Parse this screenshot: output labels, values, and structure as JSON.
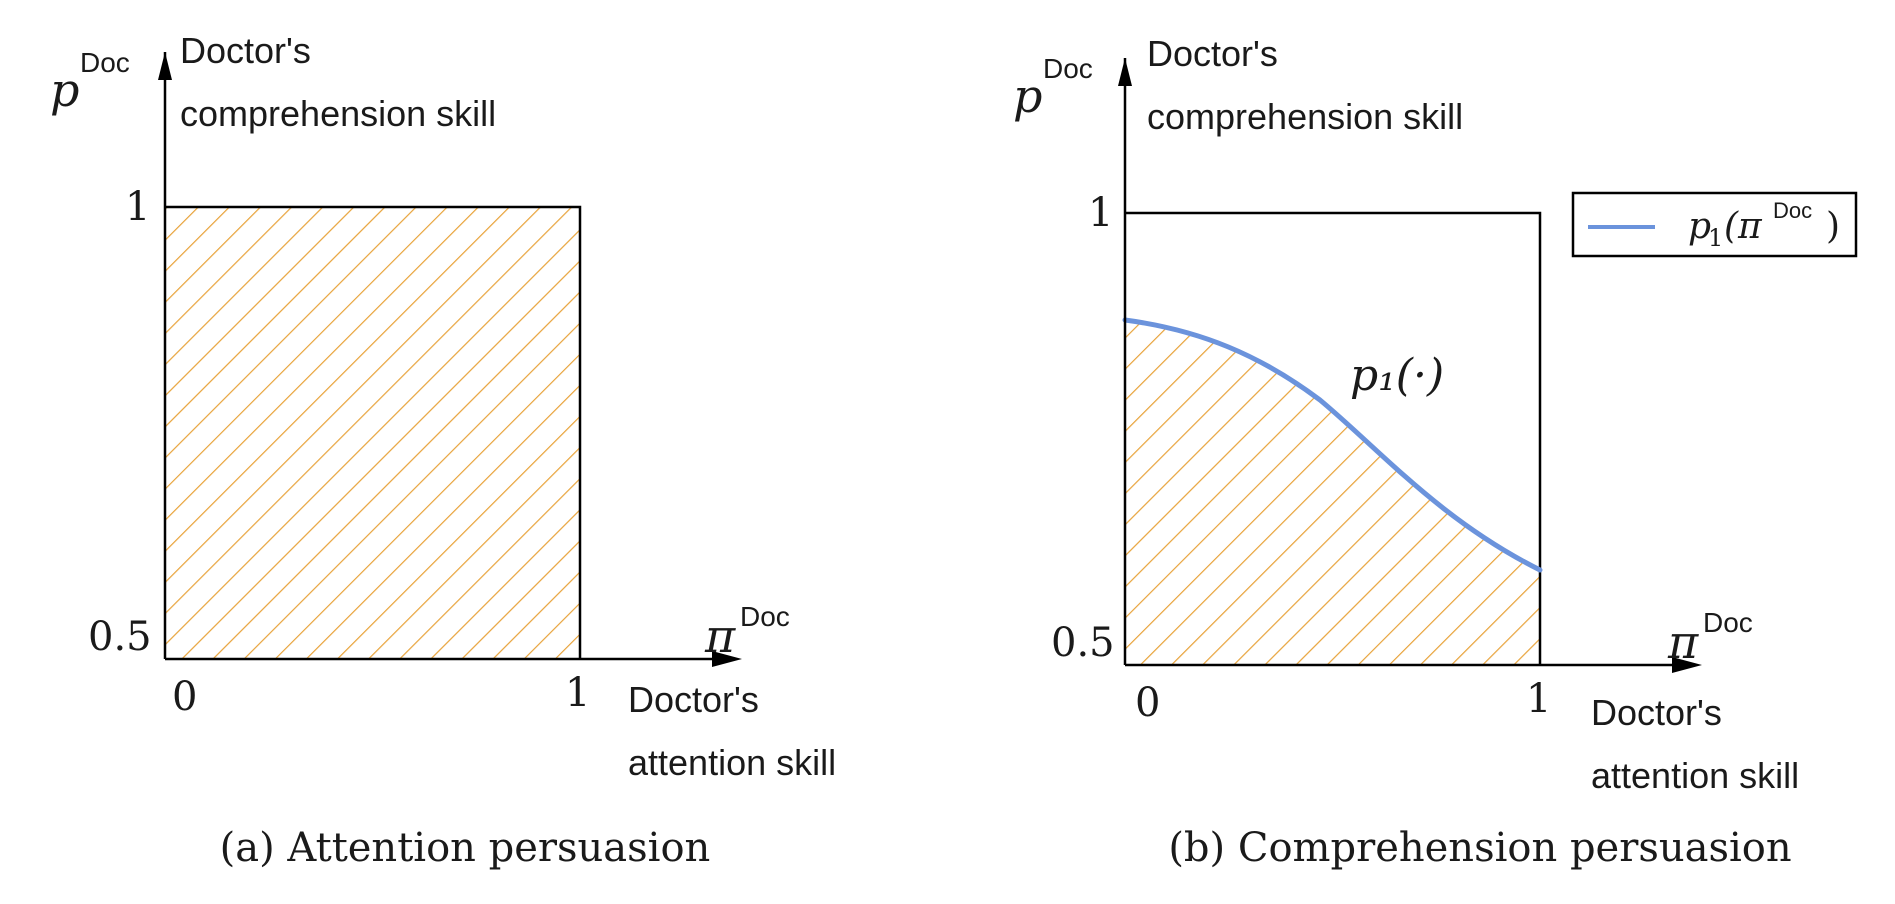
{
  "panel_a": {
    "y_symbol": "p",
    "y_superscript": "Doc",
    "y_desc_line1": "Doctor's",
    "y_desc_line2": "comprehension skill",
    "x_symbol": "π",
    "x_superscript": "Doc",
    "x_desc_line1": "Doctor's",
    "x_desc_line2": "attention skill",
    "tick_y_top": "1",
    "tick_y_bottom": "0.5",
    "tick_x_left": "0",
    "tick_x_right": "1",
    "caption": "(a) Attention persuasion"
  },
  "panel_b": {
    "y_symbol": "p",
    "y_superscript": "Doc",
    "y_desc_line1": "Doctor's",
    "y_desc_line2": "comprehension skill",
    "x_symbol": "π",
    "x_superscript": "Doc",
    "x_desc_line1": "Doctor's",
    "x_desc_line2": "attention skill",
    "tick_y_top": "1",
    "tick_y_bottom": "0.5",
    "tick_x_left": "0",
    "tick_x_right": "1",
    "curve_label": "p₁(·)",
    "legend_func": "p",
    "legend_sub": "1",
    "legend_open": "(π",
    "legend_sup": "Doc",
    "legend_close": ")",
    "caption": "(b) Comprehension persuasion"
  },
  "colors": {
    "hatch": "#E8A33A",
    "curve": "#6B93DC",
    "axis": "#000000"
  }
}
